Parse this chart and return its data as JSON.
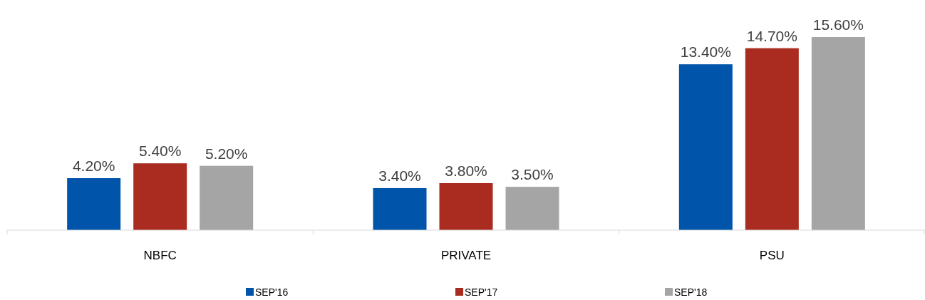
{
  "chart_data": {
    "type": "bar",
    "categories": [
      "NBFC",
      "PRIVATE",
      "PSU"
    ],
    "series": [
      {
        "name": "SEP'16",
        "color": "#0054aa",
        "values": [
          4.2,
          3.4,
          13.4
        ],
        "value_labels": [
          "4.20%",
          "3.40%",
          "13.40%"
        ]
      },
      {
        "name": "SEP'17",
        "color": "#aa2b20",
        "values": [
          5.4,
          3.8,
          14.7
        ],
        "value_labels": [
          "5.40%",
          "3.80%",
          "14.70%"
        ]
      },
      {
        "name": "SEP'18",
        "color": "#a5a5a5",
        "values": [
          5.2,
          3.5,
          15.6
        ],
        "value_labels": [
          "5.20%",
          "3.50%",
          "15.60%"
        ]
      }
    ],
    "legend": "bottom"
  }
}
